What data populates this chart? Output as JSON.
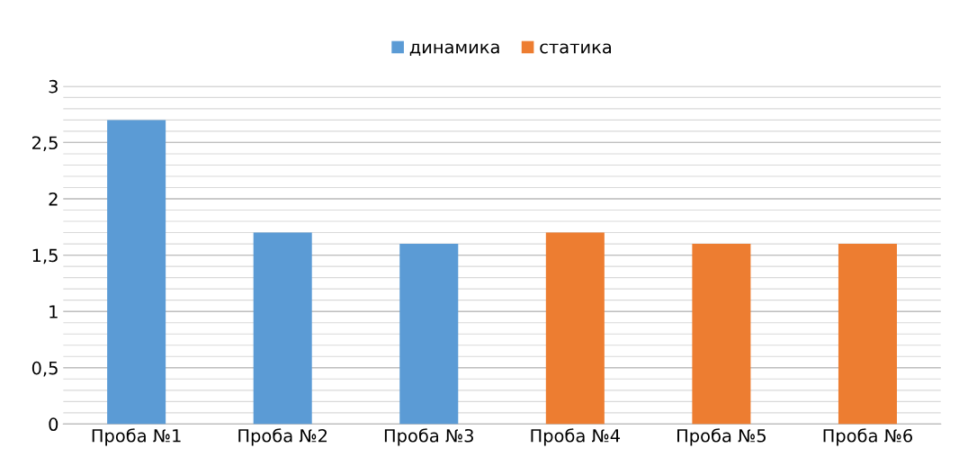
{
  "chart_data": {
    "type": "bar",
    "categories": [
      "Проба №1",
      "Проба №2",
      "Проба №3",
      "Проба №4",
      "Проба №5",
      "Проба №6"
    ],
    "series": [
      {
        "name": "динамика",
        "color": "#5b9bd5",
        "values": [
          2.7,
          1.7,
          1.6,
          null,
          null,
          null
        ]
      },
      {
        "name": "статика",
        "color": "#ed7d31",
        "values": [
          null,
          null,
          null,
          1.7,
          1.6,
          1.6
        ]
      }
    ],
    "ylim": [
      0,
      3
    ],
    "yticks": [
      0,
      {
        "value": 0.5,
        "label": "0,5"
      },
      1,
      {
        "value": 1.5,
        "label": "1,5"
      },
      2,
      {
        "value": 2.5,
        "label": "2,5"
      },
      3
    ],
    "grid": "y",
    "legend": "top"
  }
}
